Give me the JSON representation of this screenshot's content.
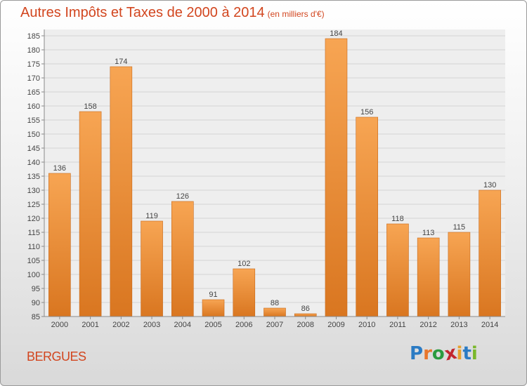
{
  "title": "Autres Impôts et Taxes de 2000 à 2014",
  "title_unit": "(en milliers d'€)",
  "commune": "BERGUES",
  "brand": {
    "letters": [
      "P",
      "r",
      "o",
      "x",
      "i",
      "t",
      "i"
    ],
    "colors": [
      "#2b7bc4",
      "#e8762c",
      "#2b9b3f",
      "#c2262e",
      "#e8a12c",
      "#2b7bc4",
      "#7ab82c"
    ]
  },
  "colors": {
    "bar_light": "#f7a553",
    "bar_dark": "#d97620",
    "bar_edge": "#c8691b",
    "title": "#d2461f"
  },
  "chart_data": {
    "type": "bar",
    "title": "Autres Impôts et Taxes de 2000 à 2014",
    "categories": [
      "2000",
      "2001",
      "2002",
      "2003",
      "2004",
      "2005",
      "2006",
      "2007",
      "2008",
      "2009",
      "2010",
      "2011",
      "2012",
      "2013",
      "2014"
    ],
    "values": [
      136,
      158,
      174,
      119,
      126,
      91,
      102,
      88,
      86,
      184,
      156,
      118,
      113,
      115,
      130
    ],
    "ylim": [
      85,
      185
    ],
    "yticks": [
      85,
      90,
      95,
      100,
      105,
      110,
      115,
      120,
      125,
      130,
      135,
      140,
      145,
      150,
      155,
      160,
      165,
      170,
      175,
      180,
      185
    ],
    "grid": true
  }
}
